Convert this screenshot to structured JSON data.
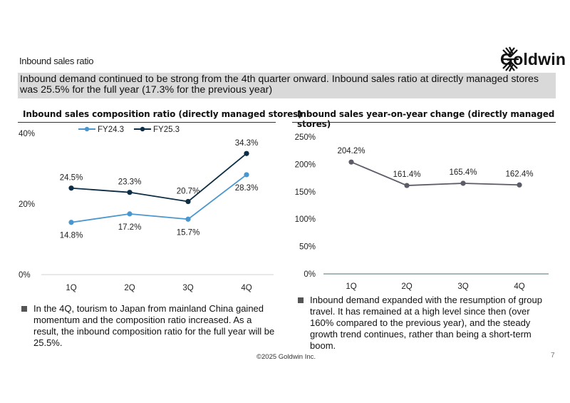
{
  "header": {
    "page_label": "Inbound sales ratio",
    "logo_text": "Goldwin",
    "banner": "Inbound demand continued to be strong from the 4th quarter onward. Inbound sales ratio at directly managed stores was 25.5% for the full year (17.3% for the previous year)"
  },
  "charts": {
    "left_title": "Inbound sales composition ratio (directly managed stores)",
    "right_title": "Inbound sales year-on-year change (directly managed stores)"
  },
  "chart_data": [
    {
      "type": "line",
      "title": "Inbound sales composition ratio (directly managed stores)",
      "categories": [
        "1Q",
        "2Q",
        "3Q",
        "4Q"
      ],
      "ylim": [
        0,
        40
      ],
      "yticks": [
        "0%",
        "20%",
        "40%"
      ],
      "legend_position": "top",
      "grid": false,
      "series": [
        {
          "name": "FY24.3",
          "color": "#4a97cf",
          "values": [
            14.8,
            17.2,
            15.7,
            28.3
          ],
          "labels": [
            "14.8%",
            "17.2%",
            "15.7%",
            "28.3%"
          ]
        },
        {
          "name": "FY25.3",
          "color": "#0c2d44",
          "values": [
            24.5,
            23.3,
            20.7,
            34.3
          ],
          "labels": [
            "24.5%",
            "23.3%",
            "20.7%",
            "34.3%"
          ]
        }
      ]
    },
    {
      "type": "line",
      "title": "Inbound sales year-on-year change (directly managed stores)",
      "categories": [
        "1Q",
        "2Q",
        "3Q",
        "4Q"
      ],
      "ylim": [
        0,
        250
      ],
      "yticks": [
        "0%",
        "50%",
        "100%",
        "150%",
        "200%",
        "250%"
      ],
      "grid": false,
      "series": [
        {
          "color": "#5c5c68",
          "values": [
            204.2,
            161.4,
            165.4,
            162.4
          ],
          "labels": [
            "204.2%",
            "161.4%",
            "165.4%",
            "162.4%"
          ]
        }
      ]
    }
  ],
  "bullets": {
    "left": "In the 4Q, tourism to Japan from mainland China gained momentum and the composition ratio increased. As a result, the inbound composition ratio for the full year will be 25.5%.",
    "right": "Inbound demand expanded with the resumption of group travel. It has remained at a high level since then (over 160% compared to the previous year), and the steady growth trend continues, rather than being a short-term boom."
  },
  "footer": {
    "copyright": "©2025 Goldwin Inc.",
    "page_number": "7"
  }
}
